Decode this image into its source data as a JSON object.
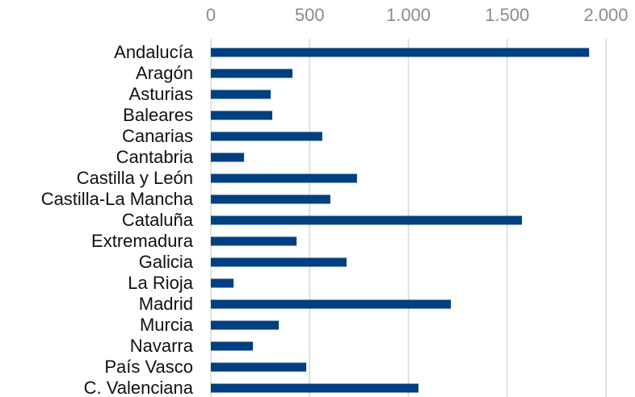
{
  "chart_data": {
    "type": "bar",
    "orientation": "horizontal",
    "categories": [
      "Andalucía",
      "Aragón",
      "Asturias",
      "Baleares",
      "Canarias",
      "Cantabria",
      "Castilla y León",
      "Castilla-La Mancha",
      "Cataluña",
      "Extremadura",
      "Galicia",
      "La Rioja",
      "Madrid",
      "Murcia",
      "Navarra",
      "País Vasco",
      "C. Valenciana"
    ],
    "values": [
      1915,
      413,
      303,
      311,
      564,
      168,
      740,
      605,
      1575,
      434,
      687,
      115,
      1215,
      344,
      213,
      483,
      1051
    ],
    "color": "#004080",
    "xlim": [
      0,
      2000
    ],
    "xticks": [
      0,
      500,
      {
        "value": 1000,
        "label": "1.000"
      },
      {
        "value": 1500,
        "label": "1.500"
      },
      {
        "value": 2000,
        "label": "2.000"
      }
    ],
    "grid": true
  }
}
